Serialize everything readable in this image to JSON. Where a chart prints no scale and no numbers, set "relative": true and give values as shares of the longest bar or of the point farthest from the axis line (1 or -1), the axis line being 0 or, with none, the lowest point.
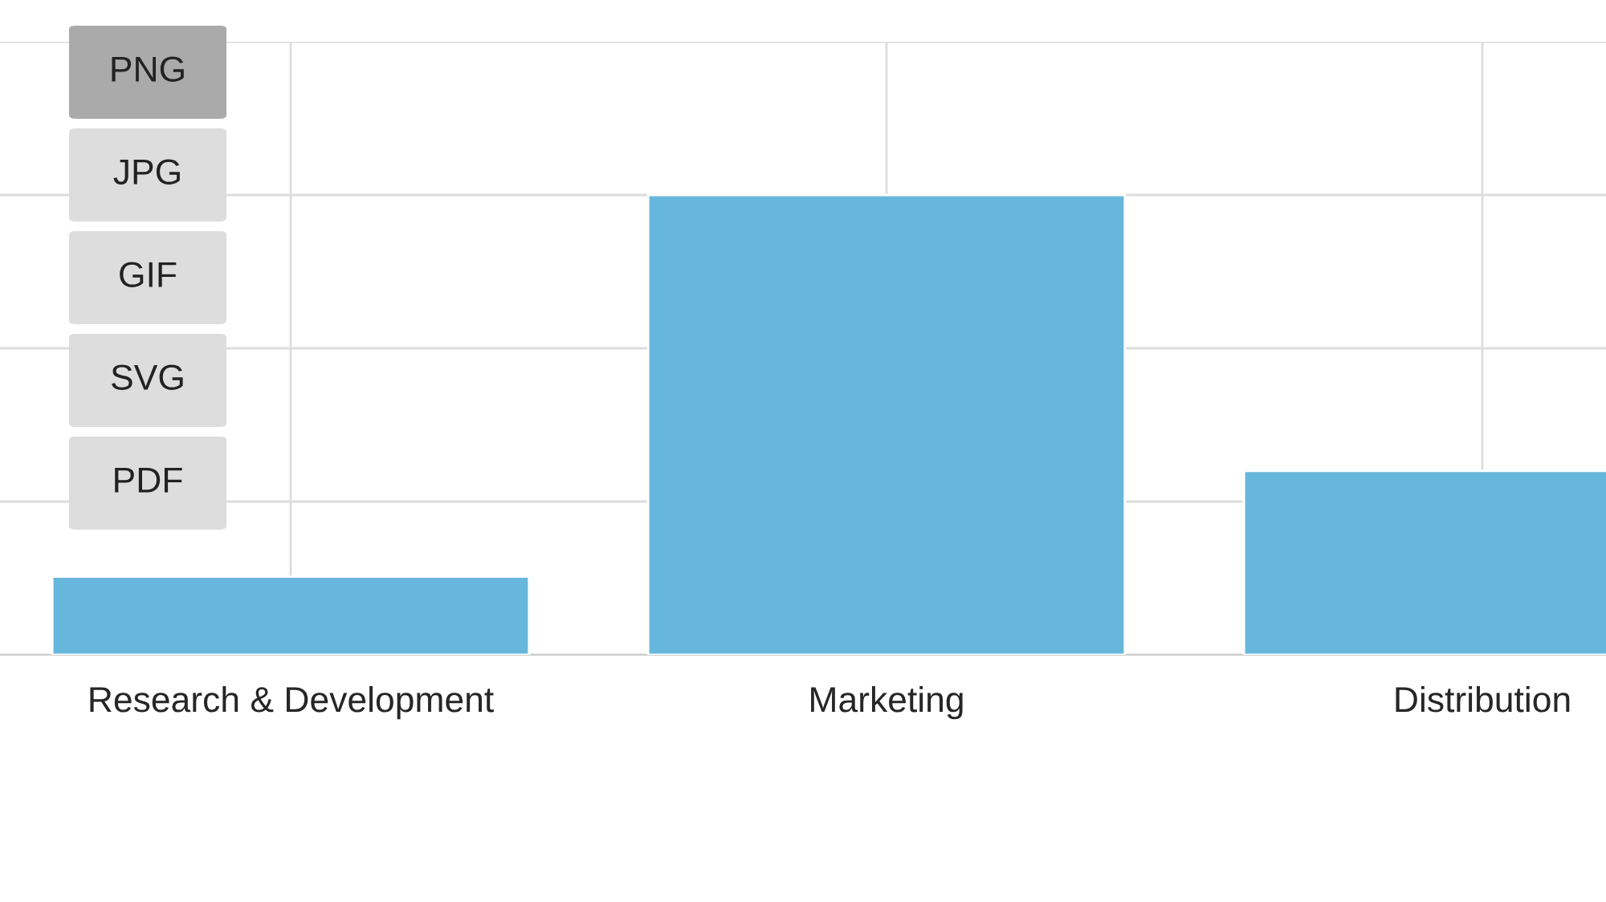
{
  "chart_data": {
    "type": "bar",
    "relative": true,
    "categories": [
      "Research & Development",
      "Marketing",
      "Distribution"
    ],
    "values": [
      0.17,
      1,
      0.4
    ],
    "color": "#67b7dc",
    "grid": true,
    "annotations": [
      "PNG",
      "JPG",
      "GIF",
      "SVG",
      "PDF"
    ]
  }
}
